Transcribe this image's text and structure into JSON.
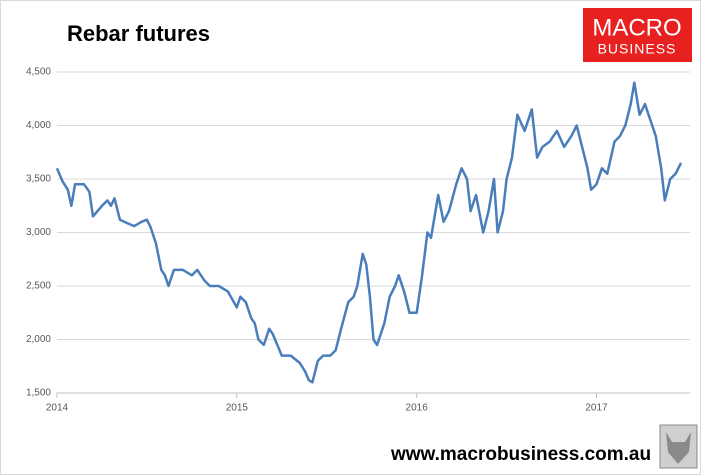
{
  "chart_data": {
    "type": "line",
    "title": "Rebar futures",
    "logo": [
      "MACRO",
      "BUSINESS"
    ],
    "footer": "www.macrobusiness.com.au",
    "color": "#4a7ebb",
    "grid": true,
    "xlim": [
      2014,
      2017.52
    ],
    "xticks": [
      2014,
      2015,
      2016,
      2017
    ],
    "ylim": [
      1500,
      4500
    ],
    "yticks": [
      {
        "value": 1500,
        "label": "1,500"
      },
      {
        "value": 2000,
        "label": "2,000"
      },
      {
        "value": 2500,
        "label": "2,500"
      },
      {
        "value": 3000,
        "label": "3,000"
      },
      {
        "value": 3500,
        "label": "3,500"
      },
      {
        "value": 4000,
        "label": "4,000"
      },
      {
        "value": 4500,
        "label": "4,500"
      }
    ],
    "x": [
      2014.0,
      2014.03,
      2014.06,
      2014.08,
      2014.1,
      2014.15,
      2014.18,
      2014.2,
      2014.25,
      2014.28,
      2014.3,
      2014.32,
      2014.35,
      2014.4,
      2014.43,
      2014.47,
      2014.5,
      2014.52,
      2014.55,
      2014.58,
      2014.6,
      2014.62,
      2014.65,
      2014.7,
      2014.75,
      2014.78,
      2014.82,
      2014.85,
      2014.9,
      2014.95,
      2015.0,
      2015.02,
      2015.05,
      2015.08,
      2015.1,
      2015.12,
      2015.15,
      2015.18,
      2015.2,
      2015.25,
      2015.3,
      2015.35,
      2015.38,
      2015.4,
      2015.42,
      2015.45,
      2015.48,
      2015.52,
      2015.55,
      2015.58,
      2015.62,
      2015.65,
      2015.67,
      2015.7,
      2015.72,
      2015.74,
      2015.76,
      2015.78,
      2015.82,
      2015.85,
      2015.88,
      2015.9,
      2015.93,
      2015.96,
      2016.0,
      2016.03,
      2016.06,
      2016.08,
      2016.1,
      2016.12,
      2016.15,
      2016.18,
      2016.22,
      2016.25,
      2016.28,
      2016.3,
      2016.33,
      2016.37,
      2016.4,
      2016.43,
      2016.45,
      2016.48,
      2016.5,
      2016.53,
      2016.56,
      2016.6,
      2016.64,
      2016.67,
      2016.7,
      2016.74,
      2016.78,
      2016.82,
      2016.86,
      2016.89,
      2016.92,
      2016.95,
      2016.97,
      2017.0,
      2017.03,
      2017.06,
      2017.1,
      2017.13,
      2017.16,
      2017.19,
      2017.21,
      2017.24,
      2017.27,
      2017.3,
      2017.33,
      2017.36,
      2017.38,
      2017.41,
      2017.44,
      2017.47
    ],
    "values": [
      3600,
      3480,
      3400,
      3250,
      3450,
      3450,
      3380,
      3150,
      3250,
      3300,
      3250,
      3320,
      3120,
      3080,
      3060,
      3100,
      3120,
      3050,
      2900,
      2650,
      2600,
      2500,
      2650,
      2650,
      2600,
      2650,
      2550,
      2500,
      2500,
      2450,
      2300,
      2400,
      2350,
      2200,
      2150,
      2000,
      1950,
      2100,
      2050,
      1850,
      1850,
      1780,
      1700,
      1620,
      1600,
      1800,
      1850,
      1850,
      1900,
      2100,
      2350,
      2400,
      2500,
      2800,
      2700,
      2400,
      2000,
      1950,
      2150,
      2400,
      2500,
      2600,
      2450,
      2250,
      2250,
      2600,
      3000,
      2950,
      3150,
      3350,
      3100,
      3200,
      3450,
      3600,
      3500,
      3200,
      3350,
      3000,
      3200,
      3500,
      3000,
      3200,
      3500,
      3700,
      4100,
      3950,
      4150,
      3700,
      3800,
      3850,
      3950,
      3800,
      3900,
      4000,
      3800,
      3600,
      3400,
      3450,
      3600,
      3550,
      3850,
      3900,
      4000,
      4200,
      4400,
      4100,
      4200,
      4050,
      3900,
      3600,
      3300,
      3500,
      3550,
      3650
    ]
  }
}
